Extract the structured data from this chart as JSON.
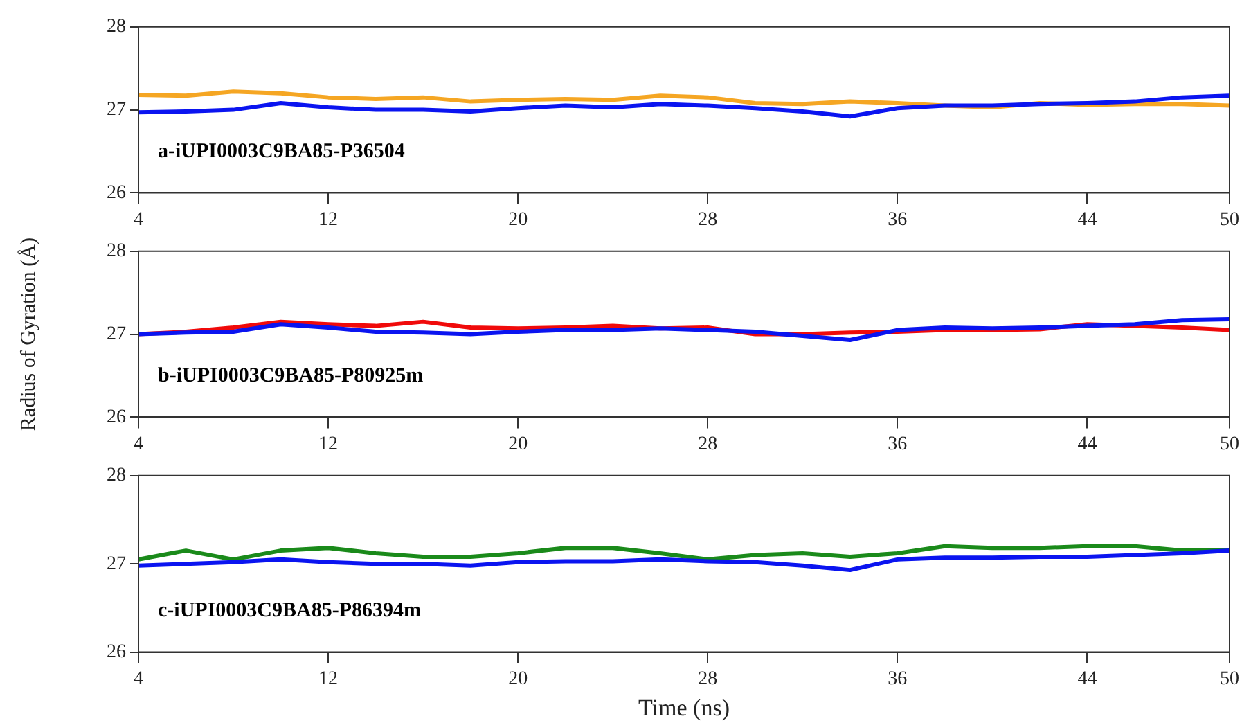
{
  "chart_data": [
    {
      "type": "line",
      "x": [
        4,
        6,
        8,
        10,
        12,
        14,
        16,
        18,
        20,
        22,
        24,
        26,
        28,
        30,
        32,
        34,
        36,
        38,
        40,
        42,
        44,
        46,
        48,
        50
      ],
      "xlim": [
        4,
        50
      ],
      "xticks": [
        4,
        12,
        20,
        28,
        36,
        44,
        50
      ],
      "ylim": [
        26,
        28
      ],
      "yticks": [
        26,
        27,
        28
      ],
      "grid": false,
      "legend": false,
      "marker": "none",
      "annotations": [
        "a-iUPI0003C9BA85-P36504"
      ],
      "series": [
        {
          "color": "#0a14f0",
          "values": [
            26.97,
            26.98,
            27.0,
            27.08,
            27.03,
            27.0,
            27.0,
            26.98,
            27.02,
            27.05,
            27.03,
            27.07,
            27.05,
            27.02,
            26.98,
            26.92,
            27.02,
            27.05,
            27.05,
            27.07,
            27.08,
            27.1,
            27.15,
            27.17
          ]
        },
        {
          "color": "#f5a623",
          "values": [
            27.18,
            27.17,
            27.22,
            27.2,
            27.15,
            27.13,
            27.15,
            27.1,
            27.12,
            27.13,
            27.12,
            27.17,
            27.15,
            27.08,
            27.07,
            27.1,
            27.08,
            27.05,
            27.03,
            27.08,
            27.06,
            27.07,
            27.07,
            27.05
          ]
        }
      ]
    },
    {
      "type": "line",
      "x": [
        4,
        6,
        8,
        10,
        12,
        14,
        16,
        18,
        20,
        22,
        24,
        26,
        28,
        30,
        32,
        34,
        36,
        38,
        40,
        42,
        44,
        46,
        48,
        50
      ],
      "xlim": [
        4,
        50
      ],
      "xticks": [
        4,
        12,
        20,
        28,
        36,
        44,
        50
      ],
      "ylim": [
        26,
        28
      ],
      "yticks": [
        26,
        27,
        28
      ],
      "ylabel": "Radius of Gyration (Å)",
      "grid": false,
      "legend": false,
      "marker": "none",
      "annotations": [
        "b-iUPI0003C9BA85-P80925m"
      ],
      "series": [
        {
          "color": "#0a14f0",
          "values": [
            27.0,
            27.02,
            27.03,
            27.12,
            27.08,
            27.03,
            27.02,
            27.0,
            27.03,
            27.05,
            27.05,
            27.07,
            27.05,
            27.03,
            26.98,
            26.93,
            27.05,
            27.08,
            27.07,
            27.08,
            27.1,
            27.12,
            27.17,
            27.18
          ]
        },
        {
          "color": "#f00a0a",
          "values": [
            27.0,
            27.03,
            27.08,
            27.15,
            27.12,
            27.1,
            27.15,
            27.08,
            27.07,
            27.08,
            27.1,
            27.07,
            27.08,
            27.0,
            27.0,
            27.02,
            27.03,
            27.05,
            27.05,
            27.06,
            27.12,
            27.1,
            27.08,
            27.05
          ]
        }
      ]
    },
    {
      "type": "line",
      "x": [
        4,
        6,
        8,
        10,
        12,
        14,
        16,
        18,
        20,
        22,
        24,
        26,
        28,
        30,
        32,
        34,
        36,
        38,
        40,
        42,
        44,
        46,
        48,
        50
      ],
      "xlim": [
        4,
        50
      ],
      "xticks": [
        4,
        12,
        20,
        28,
        36,
        44,
        50
      ],
      "ylim": [
        26,
        28
      ],
      "yticks": [
        26,
        27,
        28
      ],
      "xlabel": "Time (ns)",
      "grid": false,
      "legend": false,
      "marker": "none",
      "annotations": [
        "c-iUPI0003C9BA85-P86394m"
      ],
      "series": [
        {
          "color": "#0a14f0",
          "values": [
            26.98,
            27.0,
            27.02,
            27.05,
            27.02,
            27.0,
            27.0,
            26.98,
            27.02,
            27.03,
            27.03,
            27.05,
            27.03,
            27.02,
            26.98,
            26.93,
            27.05,
            27.07,
            27.07,
            27.08,
            27.08,
            27.1,
            27.12,
            27.15
          ]
        },
        {
          "color": "#1a8a1a",
          "values": [
            27.05,
            27.15,
            27.05,
            27.15,
            27.18,
            27.12,
            27.08,
            27.08,
            27.12,
            27.18,
            27.18,
            27.12,
            27.05,
            27.1,
            27.12,
            27.08,
            27.12,
            27.2,
            27.18,
            27.18,
            27.2,
            27.2,
            27.15,
            27.15
          ]
        }
      ]
    }
  ]
}
